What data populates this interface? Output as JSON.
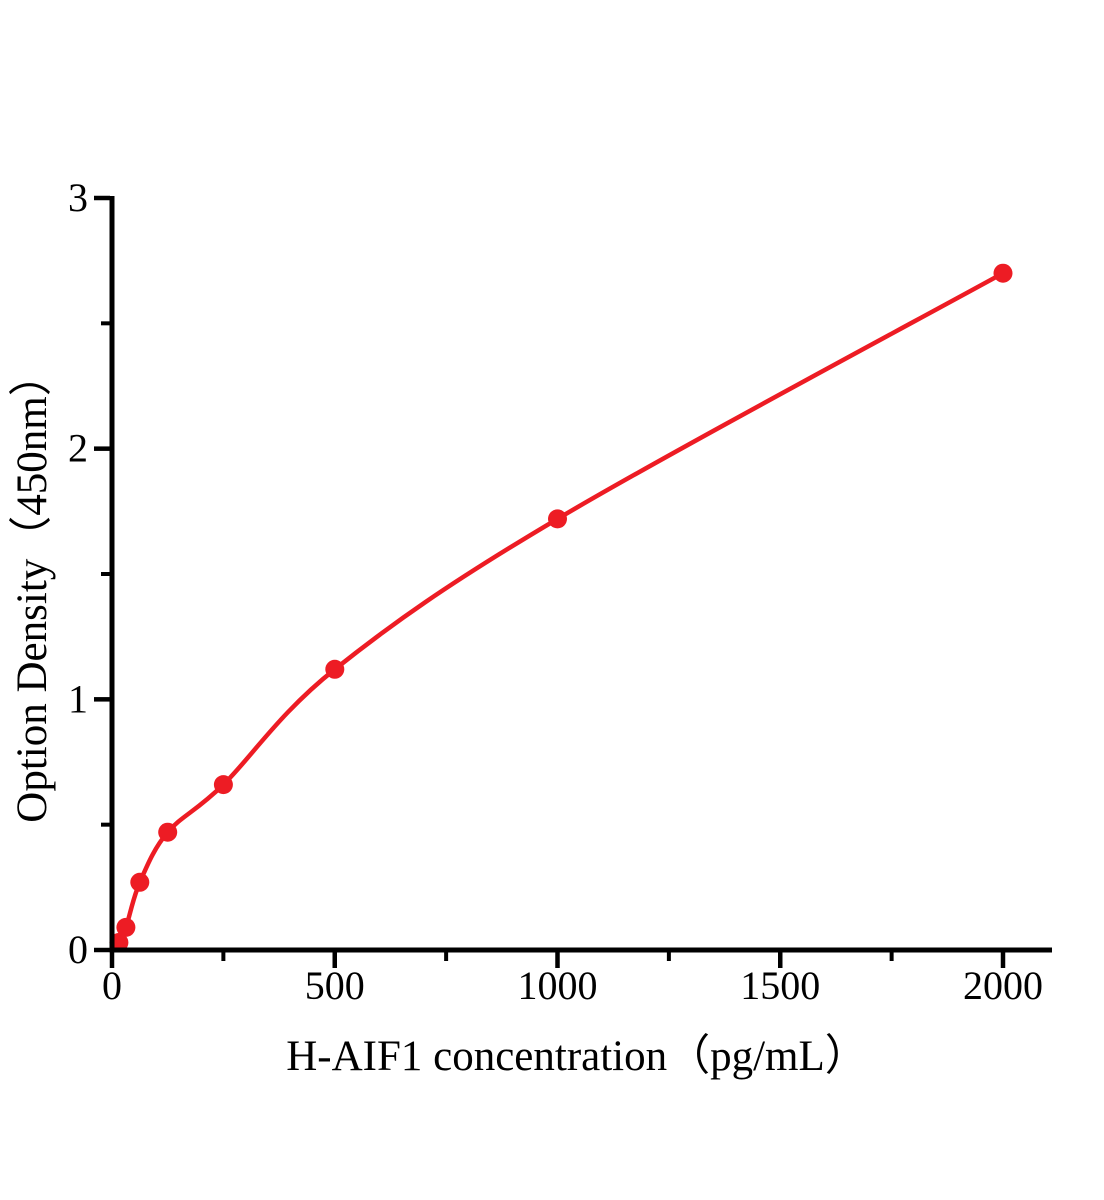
{
  "figure": {
    "background_color": "#ffffff",
    "axis_color": "#000000",
    "accent_color": "#ed1c24"
  },
  "chart_data": {
    "type": "scatter",
    "subtype": "elisa-standard-curve-with-smooth-fit",
    "title": "",
    "xlabel": "H-AIF1 concentration（pg/mL）",
    "ylabel": "Option Density（450nm）",
    "x": [
      15.6,
      31.2,
      62.5,
      125,
      250,
      500,
      1000,
      2000
    ],
    "y": [
      0.03,
      0.09,
      0.27,
      0.47,
      0.66,
      1.12,
      1.72,
      2.7
    ],
    "curve_start": {
      "x": 0,
      "y": 0
    },
    "xlim": [
      0,
      2110
    ],
    "ylim": [
      0,
      3
    ],
    "x_major_ticks": [
      0,
      500,
      1000,
      1500,
      2000
    ],
    "x_minor_ticks": [
      250,
      750,
      1250,
      1750
    ],
    "y_major_ticks": [
      0,
      1,
      2,
      3
    ],
    "y_minor_ticks": [
      0.5,
      1.5,
      2.5
    ],
    "grid": false,
    "legend": "none",
    "line_color": "#ed1c24",
    "marker_color": "#ed1c24",
    "marker_shape": "circle"
  }
}
